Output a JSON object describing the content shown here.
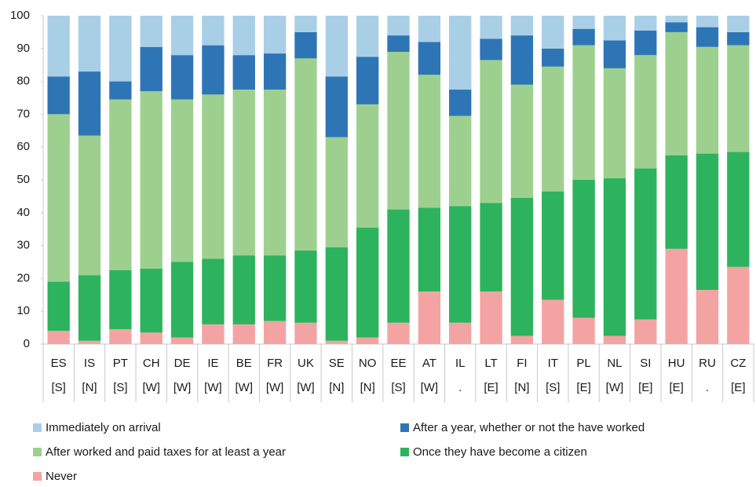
{
  "chart_data": {
    "type": "stacked_bar",
    "categories": [
      "ES",
      "IS",
      "PT",
      "CH",
      "DE",
      "IE",
      "BE",
      "FR",
      "UK",
      "SE",
      "NO",
      "EE",
      "AT",
      "IL",
      "LT",
      "FI",
      "IT",
      "PL",
      "NL",
      "SI",
      "HU",
      "RU",
      "CZ"
    ],
    "sublabels": [
      "[S]",
      "[N]",
      "[S]",
      "[W]",
      "[W]",
      "[W]",
      "[W]",
      "[W]",
      "[W]",
      "[N]",
      "[N]",
      "[S]",
      "[W]",
      ".",
      "[E]",
      "[N]",
      "[S]",
      "[E]",
      "[W]",
      "[E]",
      "[E]",
      ".",
      "[E]"
    ],
    "series": [
      {
        "name": "Immediately on arrival",
        "color": "#a9cfe7",
        "values": [
          18.5,
          17,
          20,
          9.5,
          12,
          9,
          12,
          11.5,
          5,
          18.5,
          12.5,
          6,
          8,
          22.5,
          7,
          6,
          10,
          4,
          7.5,
          4.5,
          2,
          3.5,
          5
        ]
      },
      {
        "name": "After a year, whether or not the have worked",
        "color": "#2e75b6",
        "values": [
          11.5,
          19.5,
          5.5,
          13.5,
          13.5,
          15,
          10.5,
          11,
          8,
          18.5,
          14.5,
          5,
          10,
          8,
          6.5,
          15,
          5.5,
          5,
          8.5,
          7.5,
          3,
          6,
          4
        ]
      },
      {
        "name": "After worked and paid taxes for at least a year",
        "color": "#9dd08f",
        "values": [
          51,
          42.5,
          52,
          54,
          49.5,
          50,
          50.5,
          50.5,
          58.5,
          33.5,
          37.5,
          48,
          40.5,
          27.5,
          43.5,
          34.5,
          38,
          41,
          33.5,
          34.5,
          37.5,
          32.5,
          32.5
        ]
      },
      {
        "name": "Once they have become a citizen",
        "color": "#2db35d",
        "values": [
          15,
          20,
          18,
          19.5,
          23,
          20,
          21,
          20,
          22,
          28.5,
          33.5,
          34.5,
          25.5,
          35.5,
          27,
          42,
          33,
          42,
          48,
          46,
          28.5,
          41.5,
          35
        ]
      },
      {
        "name": "Never",
        "color": "#f4a3a3",
        "values": [
          4,
          1,
          4.5,
          3.5,
          2,
          6,
          6,
          7,
          6.5,
          1,
          2,
          6.5,
          16,
          6.5,
          16,
          2.5,
          13.5,
          8,
          2.5,
          7.5,
          29,
          16.5,
          23.5
        ]
      }
    ],
    "ylim": [
      0,
      100
    ],
    "yticks": [
      0,
      10,
      20,
      30,
      40,
      50,
      60,
      70,
      80,
      90,
      100
    ]
  }
}
